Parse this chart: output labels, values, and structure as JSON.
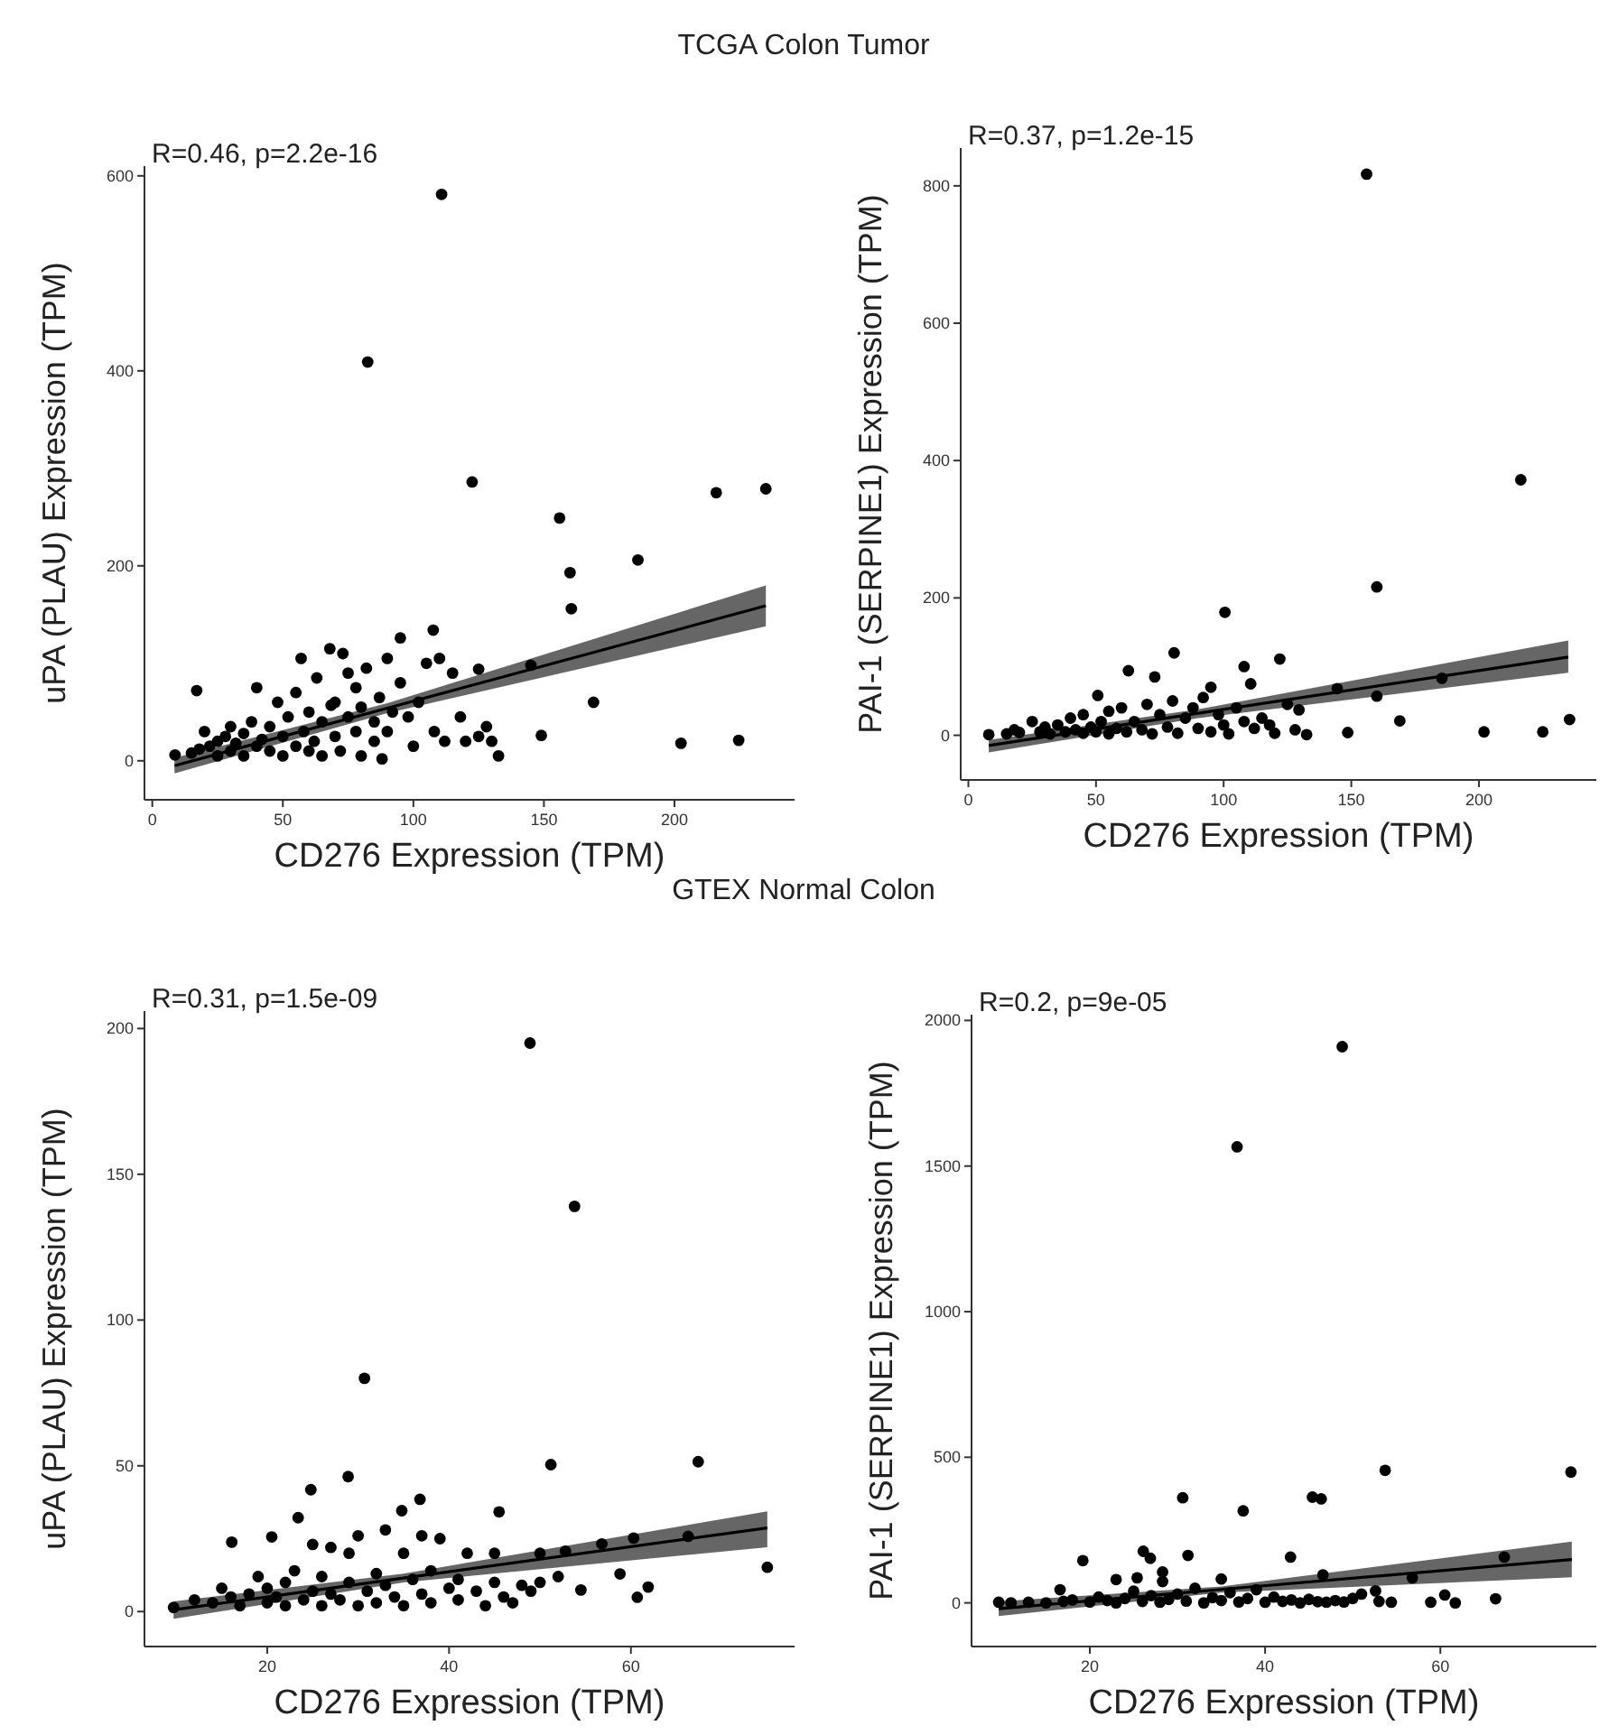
{
  "chart_data": [
    {
      "type": "scatter",
      "title": "TCGA Colon Tumor",
      "xlabel": "CD276 Expression (TPM)",
      "ylabel": "uPA (PLAU) Expression (TPM)",
      "annotations": [
        "R=0.46, p=2.2e-16"
      ],
      "xlim": [
        -3,
        246
      ],
      "ylim": [
        -40,
        610
      ],
      "xticks": [
        0,
        50,
        100,
        150,
        200
      ],
      "yticks": [
        0,
        200,
        400,
        600
      ],
      "grid": false,
      "series": [
        {
          "marker": "circle",
          "color": "#000000",
          "x": [
            110.8,
            82.5,
            122.5,
            216,
            235,
            156,
            160,
            186,
            160.5,
            169,
            149,
            202.5,
            224.6,
            132.6,
            145,
            125,
            107.6,
            95,
            68.5,
            17,
            8.7,
            15,
            18,
            20,
            22,
            25,
            25,
            28,
            30,
            30,
            32,
            35,
            35,
            38,
            40,
            40,
            42,
            45,
            45,
            48,
            50,
            50,
            52,
            55,
            55,
            57,
            58,
            60,
            60,
            62,
            63,
            65,
            65,
            68,
            70,
            70,
            72,
            73,
            75,
            75,
            78,
            78,
            80,
            80,
            82,
            85,
            85,
            87,
            88,
            90,
            90,
            92,
            95,
            98,
            100,
            102,
            105,
            108,
            110,
            112,
            115,
            118,
            120,
            125,
            128,
            130
          ],
          "values": [
            581,
            409,
            286,
            275,
            279,
            249,
            193,
            206,
            156,
            60,
            26,
            18,
            21,
            5,
            98,
            94,
            134,
            126,
            57,
            72,
            6,
            8,
            12,
            30,
            15,
            5,
            20,
            25,
            10,
            35,
            18,
            5,
            28,
            40,
            15,
            75,
            22,
            10,
            35,
            60,
            5,
            25,
            45,
            15,
            70,
            105,
            30,
            10,
            50,
            20,
            85,
            40,
            5,
            115,
            25,
            60,
            10,
            110,
            45,
            90,
            30,
            75,
            55,
            5,
            95,
            20,
            40,
            65,
            2,
            30,
            105,
            50,
            80,
            45,
            15,
            60,
            100,
            30,
            105,
            20,
            90,
            45,
            20,
            25,
            35,
            20
          ]
        },
        {
          "type": "line",
          "color": "#000000",
          "x": [
            8.5,
            90,
            235
          ],
          "values": [
            -5,
            54,
            159
          ],
          "lower": [
            -13,
            49,
            138
          ],
          "upper": [
            3,
            59,
            180
          ]
        }
      ]
    },
    {
      "type": "scatter",
      "xlabel": "CD276 Expression (TPM)",
      "ylabel": "PAI-1 (SERPINE1) Expression (TPM)",
      "annotations": [
        "R=0.37, p=1.2e-15"
      ],
      "xlim": [
        -3,
        246
      ],
      "ylim": [
        -65,
        855
      ],
      "xticks": [
        0,
        50,
        100,
        150,
        200
      ],
      "yticks": [
        0,
        200,
        400,
        600,
        800
      ],
      "grid": false,
      "series": [
        {
          "marker": "circle",
          "color": "#000000",
          "x": [
            156,
            216.4,
            160,
            100.5,
            80.6,
            122,
            108,
            110.6,
            62.7,
            160,
            169,
            148.6,
            202,
            225,
            235.5,
            185.5,
            144.5,
            129.5,
            132.5,
            50.7,
            8,
            15,
            18,
            20,
            25,
            28,
            30,
            32,
            35,
            38,
            40,
            42,
            45,
            45,
            48,
            50,
            52,
            55,
            55,
            58,
            60,
            62,
            65,
            68,
            70,
            72,
            73,
            75,
            78,
            80,
            82,
            85,
            88,
            90,
            92,
            95,
            95,
            98,
            100,
            102,
            105,
            108,
            112,
            115,
            118,
            120,
            125,
            128
          ],
          "values": [
            817,
            372,
            216,
            179,
            120,
            111,
            100,
            75,
            94,
            57,
            21,
            4,
            5,
            5,
            23,
            83,
            68,
            37,
            1,
            58,
            1,
            2,
            8,
            4,
            20,
            5,
            12,
            2,
            15,
            5,
            25,
            8,
            3,
            30,
            12,
            5,
            20,
            2,
            35,
            10,
            40,
            5,
            20,
            8,
            45,
            2,
            85,
            30,
            12,
            50,
            3,
            25,
            40,
            10,
            55,
            70,
            5,
            30,
            15,
            2,
            40,
            20,
            10,
            25,
            15,
            3,
            45,
            8
          ]
        },
        {
          "type": "line",
          "color": "#000000",
          "x": [
            8,
            90,
            235
          ],
          "values": [
            -15,
            32,
            114
          ],
          "lower": [
            -25,
            25,
            91
          ],
          "upper": [
            -7,
            38,
            138
          ]
        }
      ]
    },
    {
      "type": "scatter",
      "title": "GTEX Normal Colon",
      "xlabel": "CD276 Expression (TPM)",
      "ylabel": "uPA (PLAU) Expression (TPM)",
      "annotations": [
        "R=0.31, p=1.5e-09"
      ],
      "xlim": [
        6.5,
        78
      ],
      "ylim": [
        -12,
        206
      ],
      "xticks": [
        20,
        40,
        60
      ],
      "yticks": [
        0,
        50,
        100,
        150,
        200
      ],
      "grid": false,
      "series": [
        {
          "marker": "circle",
          "color": "#000000",
          "x": [
            48.9,
            53.8,
            30.7,
            51.2,
            67.4,
            28.9,
            24.8,
            75,
            45.5,
            36.8,
            34.8,
            23.4,
            16.1,
            20.5,
            60.3,
            66.3,
            56.8,
            58.8,
            60.7,
            61.9,
            54.5,
            52.8,
            9.7,
            12,
            14,
            15,
            16,
            17,
            18,
            19,
            20,
            20,
            21,
            22,
            22,
            23,
            24,
            25,
            25,
            26,
            26,
            27,
            27,
            28,
            29,
            29,
            30,
            30,
            31,
            32,
            32,
            33,
            33,
            34,
            35,
            35,
            36,
            37,
            37,
            38,
            38,
            39,
            40,
            41,
            41,
            42,
            43,
            44,
            45,
            45,
            46,
            47,
            48,
            49,
            50,
            50,
            52
          ],
          "values": [
            195,
            139,
            80,
            50.4,
            51.4,
            46.3,
            41.8,
            15.2,
            34.2,
            38.5,
            34.6,
            32.2,
            23.8,
            25.6,
            25.2,
            25.8,
            23.2,
            12.9,
            4.9,
            8.4,
            7.4,
            20.7,
            1.4,
            4,
            3,
            8,
            5,
            2,
            6,
            12,
            3,
            8,
            5,
            2,
            10,
            14,
            4,
            7,
            23,
            2,
            12,
            6,
            22,
            4,
            10,
            20,
            2,
            26,
            7,
            13,
            3,
            28,
            9,
            5,
            20,
            2,
            11,
            6,
            26,
            3,
            14,
            25,
            8,
            4,
            11,
            20,
            7,
            2,
            10,
            20,
            5,
            3,
            9,
            7,
            20,
            10,
            12
          ]
        },
        {
          "type": "line",
          "color": "#000000",
          "x": [
            9.7,
            35,
            75
          ],
          "values": [
            0.6,
            11.5,
            28.7
          ],
          "lower": [
            -2.5,
            10,
            22.1
          ],
          "upper": [
            3.5,
            13,
            34.4
          ]
        }
      ]
    },
    {
      "type": "scatter",
      "xlabel": "CD276 Expression (TPM)",
      "ylabel": "PAI-1 (SERPINE1) Expression (TPM)",
      "annotations": [
        "R=0.2, p=9e-05"
      ],
      "xlim": [
        6.5,
        77.8
      ],
      "ylim": [
        -150,
        2020
      ],
      "xticks": [
        20,
        40,
        60
      ],
      "yticks": [
        0,
        500,
        1000,
        1500,
        2000
      ],
      "grid": false,
      "series": [
        {
          "marker": "circle",
          "color": "#000000",
          "x": [
            48.8,
            36.8,
            53.7,
            74.9,
            30.6,
            45.4,
            46.4,
            37.5,
            42.9,
            67.3,
            26.1,
            26.9,
            31.2,
            19.2,
            28.3,
            46.6,
            56.8,
            66.3,
            61.7,
            60.5,
            58.9,
            54.4,
            9.6,
            16.6,
            23,
            25.4,
            28.3,
            35,
            52.6,
            11,
            13,
            15,
            17,
            18,
            20,
            21,
            22,
            23,
            24,
            25,
            26,
            27,
            28,
            29,
            30,
            31,
            32,
            33,
            34,
            35,
            36,
            37,
            38,
            39,
            40,
            41,
            42,
            43,
            44,
            45,
            46,
            47,
            48,
            49,
            50,
            51,
            53
          ],
          "values": [
            1910,
            1566,
            455,
            449,
            361,
            363,
            357,
            316,
            157,
            157,
            177,
            153,
            163,
            145,
            106,
            96,
            86,
            14,
            0,
            27,
            2,
            2,
            2,
            45,
            80,
            86,
            73,
            82,
            41,
            0,
            2,
            0,
            5,
            10,
            3,
            20,
            8,
            0,
            15,
            40,
            5,
            25,
            2,
            12,
            30,
            6,
            50,
            0,
            18,
            8,
            35,
            3,
            15,
            45,
            2,
            20,
            5,
            10,
            0,
            12,
            4,
            2,
            8,
            3,
            15,
            30,
            5
          ]
        },
        {
          "type": "line",
          "color": "#000000",
          "x": [
            9.6,
            35,
            75
          ],
          "values": [
            -20,
            46,
            149
          ],
          "lower": [
            -45,
            35,
            88
          ],
          "upper": [
            5,
            56,
            210
          ]
        }
      ]
    }
  ]
}
